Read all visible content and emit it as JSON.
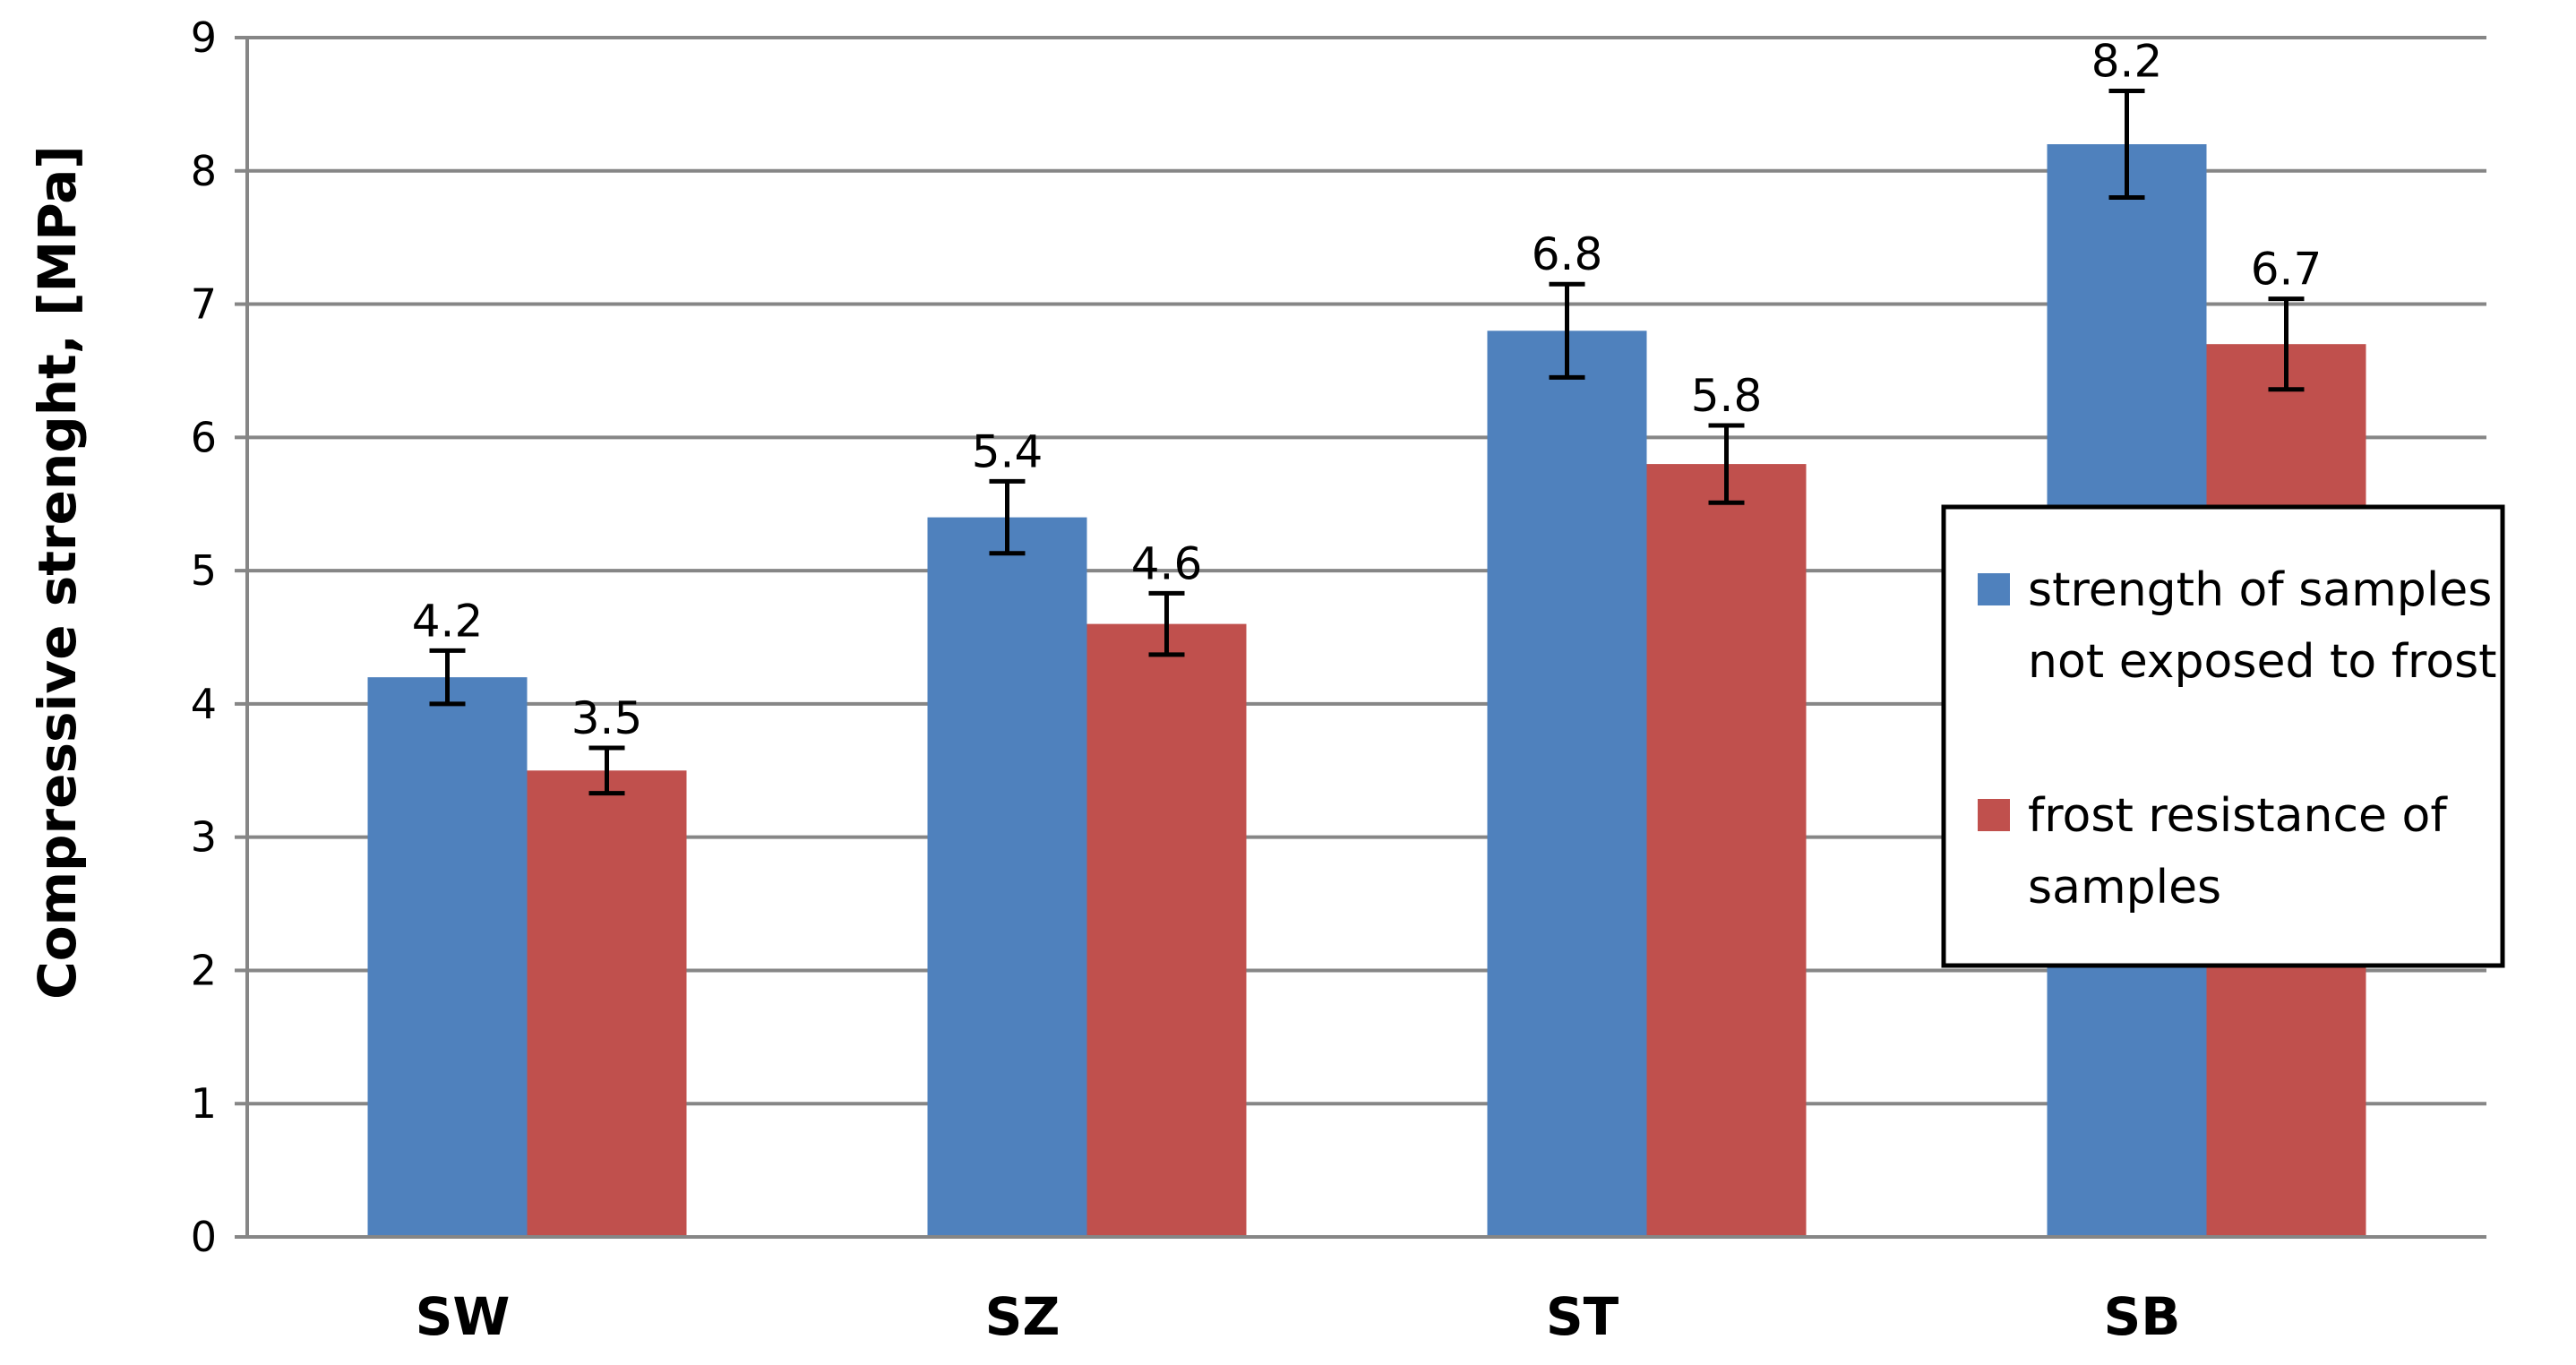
{
  "chart_data": {
    "type": "bar",
    "title": "",
    "xlabel": "",
    "ylabel": "Compressive strenght, [MPa]",
    "ylim": [
      0,
      9
    ],
    "yticks": [
      "0",
      "1",
      "2",
      "3",
      "4",
      "5",
      "6",
      "7",
      "8",
      "9"
    ],
    "grid": "horizontal",
    "categories": [
      "SW",
      "SZ",
      "ST",
      "SB"
    ],
    "series": [
      {
        "name": "strength of samples not exposed to frost",
        "legend_lines": [
          "strength of samples",
          "not exposed to frost"
        ],
        "color": "#4F81BD",
        "values": [
          4.2,
          5.4,
          6.8,
          8.2
        ],
        "error": [
          0.2,
          0.27,
          0.35,
          0.4
        ],
        "labels": [
          "4.2",
          "5.4",
          "6.8",
          "8.2"
        ]
      },
      {
        "name": "frost resistance of samples",
        "legend_lines": [
          "frost resistance of",
          "samples"
        ],
        "color": "#C0504D",
        "values": [
          3.5,
          4.6,
          5.8,
          6.7
        ],
        "error": [
          0.17,
          0.23,
          0.29,
          0.34
        ],
        "labels": [
          "3.5",
          "4.6",
          "5.8",
          "6.7"
        ]
      }
    ],
    "legend_position": "right",
    "gridline_color": "#868686",
    "axis_color": "#868686"
  }
}
